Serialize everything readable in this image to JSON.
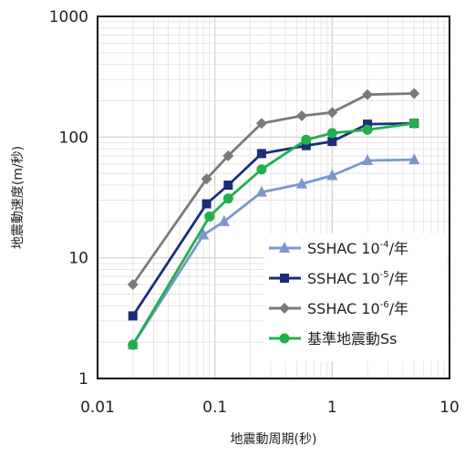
{
  "chart_data": {
    "type": "line",
    "x_scale": "log",
    "y_scale": "log",
    "xlim": [
      0.01,
      10
    ],
    "ylim": [
      1,
      1000
    ],
    "x_ticks": [
      "0.01",
      "0.1",
      "1",
      "10"
    ],
    "y_ticks": [
      "1",
      "10",
      "100",
      "1000"
    ],
    "xlabel": "地震動周期(秒)",
    "ylabel": "地震動速度(m/秒)",
    "grid": true,
    "legend_position": "bottom-right",
    "series": [
      {
        "name": "SSHAC 10-4/年",
        "legend_prefix": "SSHAC 10",
        "legend_exp": "-4",
        "legend_suffix": "/年",
        "color": "#7B98CC",
        "marker": "triangle",
        "x": [
          0.02,
          0.08,
          0.12,
          0.25,
          0.55,
          1.0,
          2.0,
          5.0
        ],
        "y": [
          1.9,
          15.5,
          20,
          35,
          41,
          48,
          64,
          65
        ]
      },
      {
        "name": "SSHAC 10-5/年",
        "legend_prefix": "SSHAC 10",
        "legend_exp": "-5",
        "legend_suffix": "/年",
        "color": "#1C2E78",
        "marker": "square",
        "x": [
          0.02,
          0.085,
          0.13,
          0.25,
          0.6,
          1.0,
          2.0,
          5.0
        ],
        "y": [
          3.3,
          28,
          40,
          73,
          85,
          92,
          128,
          130
        ]
      },
      {
        "name": "SSHAC 10-6/年",
        "legend_prefix": "SSHAC 10",
        "legend_exp": "-6",
        "legend_suffix": "/年",
        "color": "#7A7A7A",
        "marker": "diamond",
        "x": [
          0.02,
          0.085,
          0.13,
          0.25,
          0.55,
          1.0,
          2.0,
          5.0
        ],
        "y": [
          6,
          45,
          70,
          130,
          150,
          160,
          225,
          230
        ]
      },
      {
        "name": "基準地震動Ss",
        "legend_prefix": "基準地震動Ss",
        "legend_exp": "",
        "legend_suffix": "",
        "color": "#22B04B",
        "marker": "circle",
        "x": [
          0.02,
          0.09,
          0.13,
          0.25,
          0.6,
          1.0,
          2.0,
          5.0
        ],
        "y": [
          1.9,
          22,
          31,
          54,
          95,
          108,
          115,
          130
        ]
      }
    ]
  }
}
